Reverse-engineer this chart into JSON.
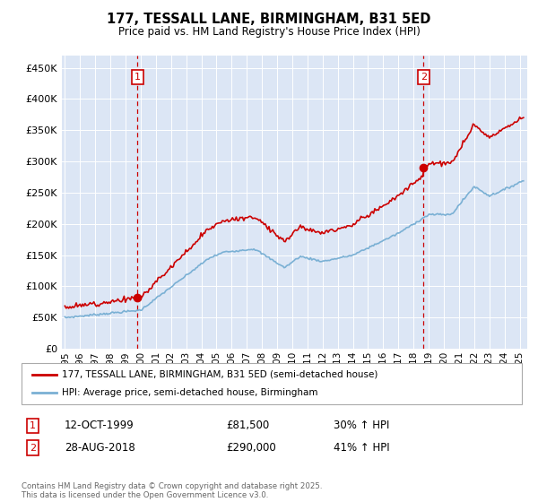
{
  "title": "177, TESSALL LANE, BIRMINGHAM, B31 5ED",
  "subtitle": "Price paid vs. HM Land Registry's House Price Index (HPI)",
  "background_color": "#ffffff",
  "plot_bg_color": "#dce6f5",
  "ylabel_ticks": [
    "£0",
    "£50K",
    "£100K",
    "£150K",
    "£200K",
    "£250K",
    "£300K",
    "£350K",
    "£400K",
    "£450K"
  ],
  "ytick_values": [
    0,
    50000,
    100000,
    150000,
    200000,
    250000,
    300000,
    350000,
    400000,
    450000
  ],
  "ylim": [
    0,
    470000
  ],
  "xlim_start": 1994.8,
  "xlim_end": 2025.5,
  "purchase1_x": 1999.78,
  "purchase1_y": 81500,
  "purchase1_label": "1",
  "purchase1_date": "12-OCT-1999",
  "purchase1_price": "£81,500",
  "purchase1_hpi": "30% ↑ HPI",
  "purchase2_x": 2018.65,
  "purchase2_y": 290000,
  "purchase2_label": "2",
  "purchase2_date": "28-AUG-2018",
  "purchase2_price": "£290,000",
  "purchase2_hpi": "41% ↑ HPI",
  "line1_color": "#cc0000",
  "line2_color": "#7ab0d4",
  "marker_color": "#cc0000",
  "vline_color": "#cc0000",
  "box_color": "#cc0000",
  "legend1_label": "177, TESSALL LANE, BIRMINGHAM, B31 5ED (semi-detached house)",
  "legend2_label": "HPI: Average price, semi-detached house, Birmingham",
  "footnote": "Contains HM Land Registry data © Crown copyright and database right 2025.\nThis data is licensed under the Open Government Licence v3.0.",
  "xtick_years": [
    1995,
    1996,
    1997,
    1998,
    1999,
    2000,
    2001,
    2002,
    2003,
    2004,
    2005,
    2006,
    2007,
    2008,
    2009,
    2010,
    2011,
    2012,
    2013,
    2014,
    2015,
    2016,
    2017,
    2018,
    2019,
    2020,
    2021,
    2022,
    2023,
    2024,
    2025
  ]
}
